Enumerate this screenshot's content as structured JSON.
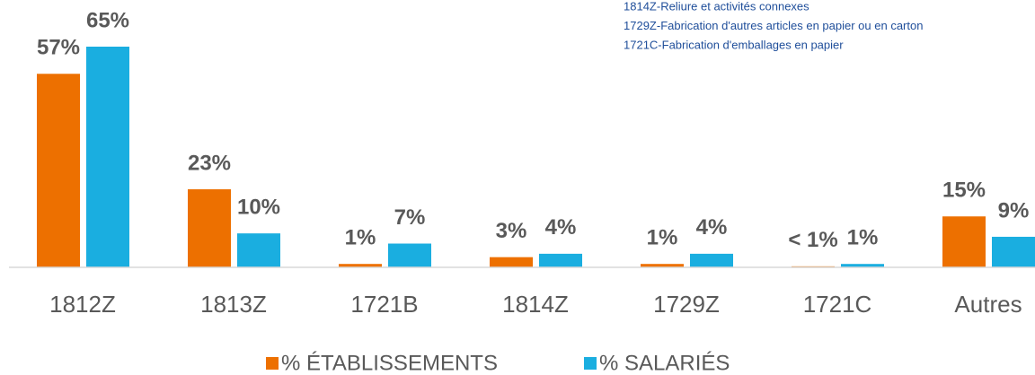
{
  "chart_data": {
    "type": "bar",
    "categories": [
      "1812Z",
      "1813Z",
      "1721B",
      "1814Z",
      "1729Z",
      "1721C",
      "Autres"
    ],
    "series": [
      {
        "name": "% ÉTABLISSEMENTS",
        "color": "#ed7000",
        "values": [
          57,
          23,
          1,
          3,
          1,
          0.3,
          15
        ],
        "value_labels": [
          "57%",
          "23%",
          "1%",
          "3%",
          "1%",
          "< 1%",
          "15%"
        ]
      },
      {
        "name": "% SALARIÉS",
        "color": "#1aaee0",
        "values": [
          65,
          10,
          7,
          4,
          4,
          1,
          9
        ],
        "value_labels": [
          "65%",
          "10%",
          "7%",
          "4%",
          "4%",
          "1%",
          "9%"
        ]
      }
    ],
    "annotations": [
      "1814Z-Reliure et activités connexes",
      "1729Z-Fabrication d'autres articles en papier ou en carton",
      "1721C-Fabrication d'emballages en papier"
    ],
    "legend": "bottom"
  }
}
